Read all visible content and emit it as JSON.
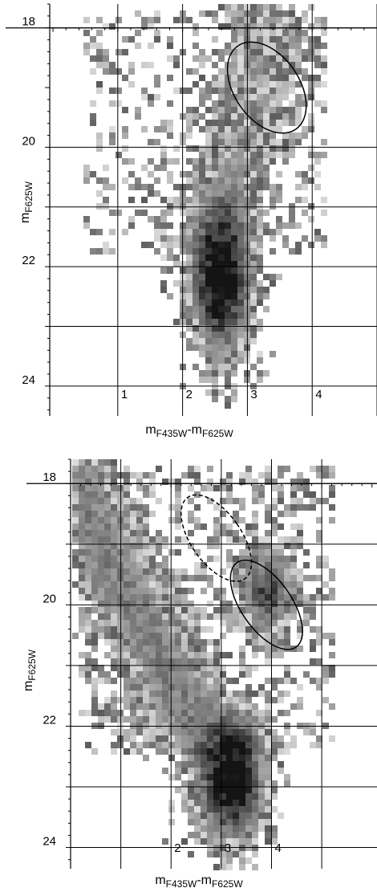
{
  "chart_data": [
    {
      "type": "heatmap",
      "panel": "top",
      "xlabel": {
        "base": "m",
        "sub1": "F435W",
        "sep": "-m",
        "sub2": "F625W"
      },
      "ylabel": {
        "base": "m",
        "sub": "F625W"
      },
      "xlim": [
        -0.05,
        5.0
      ],
      "ylim": [
        24.5,
        17.6
      ],
      "y_inverted": true,
      "grid": true,
      "x_gridlines": [
        1,
        2,
        3,
        4,
        5
      ],
      "y_gridlines": [
        18,
        20,
        21,
        22,
        23,
        24
      ],
      "x_ticks": [
        {
          "value": 1,
          "label": "1"
        },
        {
          "value": 2,
          "label": "2"
        },
        {
          "value": 3,
          "label": "3"
        },
        {
          "value": 4,
          "label": "4"
        }
      ],
      "y_ticks": [
        {
          "value": 18,
          "label": "18"
        },
        {
          "value": 20,
          "label": "20"
        },
        {
          "value": 22,
          "label": "22"
        },
        {
          "value": 24,
          "label": "24"
        }
      ],
      "density_components": [
        {
          "kind": "main-sequence",
          "x_center": 2.6,
          "y_center": 22.4,
          "x_sigma": 0.32,
          "y_sigma": 0.85,
          "peak": 1.0
        },
        {
          "kind": "giant-branch",
          "from": [
            2.55,
            21.5
          ],
          "to": [
            3.3,
            18.0
          ],
          "width": 0.45,
          "peak": 0.35
        },
        {
          "kind": "scatter",
          "x_range": [
            0.5,
            4.2
          ],
          "y_range": [
            17.7,
            21.8
          ],
          "density": 0.08
        }
      ],
      "ellipses": [
        {
          "style": "solid",
          "x_center": 3.3,
          "y_center": 19.0,
          "x_radius": 0.5,
          "y_radius": 0.85,
          "angle_deg": -35
        }
      ]
    },
    {
      "type": "heatmap",
      "panel": "bottom",
      "xlabel": {
        "base": "m",
        "sub1": "F435W",
        "sep": "-m",
        "sub2": "F625W"
      },
      "ylabel": {
        "base": "m",
        "sub": "F625W"
      },
      "xlim": [
        0.0,
        6.1
      ],
      "ylim": [
        24.35,
        17.6
      ],
      "y_inverted": true,
      "grid": true,
      "x_gridlines": [
        1,
        2,
        3,
        4,
        5
      ],
      "y_gridlines": [
        18,
        19,
        20,
        21,
        22,
        23,
        24
      ],
      "x_ticks": [
        {
          "value": 2,
          "label": "2"
        },
        {
          "value": 3,
          "label": "3"
        },
        {
          "value": 4,
          "label": "4"
        }
      ],
      "y_ticks": [
        {
          "value": 18,
          "label": "18"
        },
        {
          "value": 20,
          "label": "20"
        },
        {
          "value": 22,
          "label": "22"
        },
        {
          "value": 24,
          "label": "24"
        }
      ],
      "density_components": [
        {
          "kind": "main-sequence",
          "x_center": 3.3,
          "y_center": 22.9,
          "x_sigma": 0.4,
          "y_sigma": 0.7,
          "peak": 1.0
        },
        {
          "kind": "blue-plume",
          "from": [
            0.2,
            18.2
          ],
          "to": [
            2.8,
            22.6
          ],
          "width": 0.5,
          "peak": 0.45
        },
        {
          "kind": "red-clump",
          "x_center": 3.9,
          "y_center": 19.8,
          "x_sigma": 0.35,
          "y_sigma": 0.5,
          "peak": 0.7
        },
        {
          "kind": "scatter",
          "x_range": [
            0.1,
            5.3
          ],
          "y_range": [
            17.7,
            22.5
          ],
          "density": 0.12
        }
      ],
      "ellipses": [
        {
          "style": "dashed",
          "x_center": 2.9,
          "y_center": 18.9,
          "x_radius": 0.5,
          "y_radius": 0.82,
          "angle_deg": -35
        },
        {
          "style": "solid",
          "x_center": 3.9,
          "y_center": 20.0,
          "x_radius": 0.5,
          "y_radius": 0.85,
          "angle_deg": -35
        }
      ]
    }
  ]
}
